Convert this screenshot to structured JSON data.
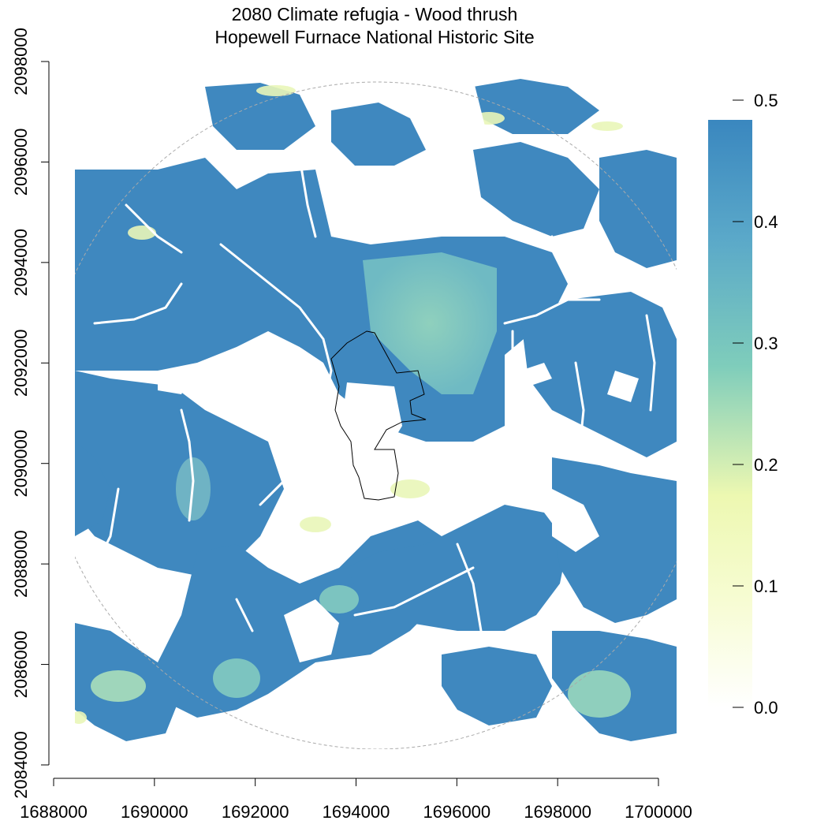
{
  "title": {
    "line1": "2080 Climate refugia - Wood thrush",
    "line2": "Hopewell Furnace National Historic Site"
  },
  "axes": {
    "x_ticks": [
      "1688000",
      "1690000",
      "1692000",
      "1694000",
      "1696000",
      "1698000",
      "1700000"
    ],
    "y_ticks": [
      "2084000",
      "2086000",
      "2088000",
      "2090000",
      "2092000",
      "2094000",
      "2096000",
      "2098000"
    ],
    "x_range": [
      1688000,
      1700000
    ],
    "y_range": [
      2084000,
      2098000
    ]
  },
  "legend": {
    "ticks": [
      "0.0",
      "0.1",
      "0.2",
      "0.3",
      "0.4",
      "0.5"
    ],
    "range": [
      0,
      0.5
    ],
    "colors": {
      "low": "#ffffe6",
      "low_mid": "#edf8b1",
      "mid": "#7fcdbb",
      "high": "#5aa8c9",
      "top": "#3a87bf"
    }
  },
  "map": {
    "feature_fill": "#3f88bf",
    "mid_fill": "#7fc4be",
    "buffer_color": "#aaaaaa",
    "boundary_color": "#000000"
  }
}
